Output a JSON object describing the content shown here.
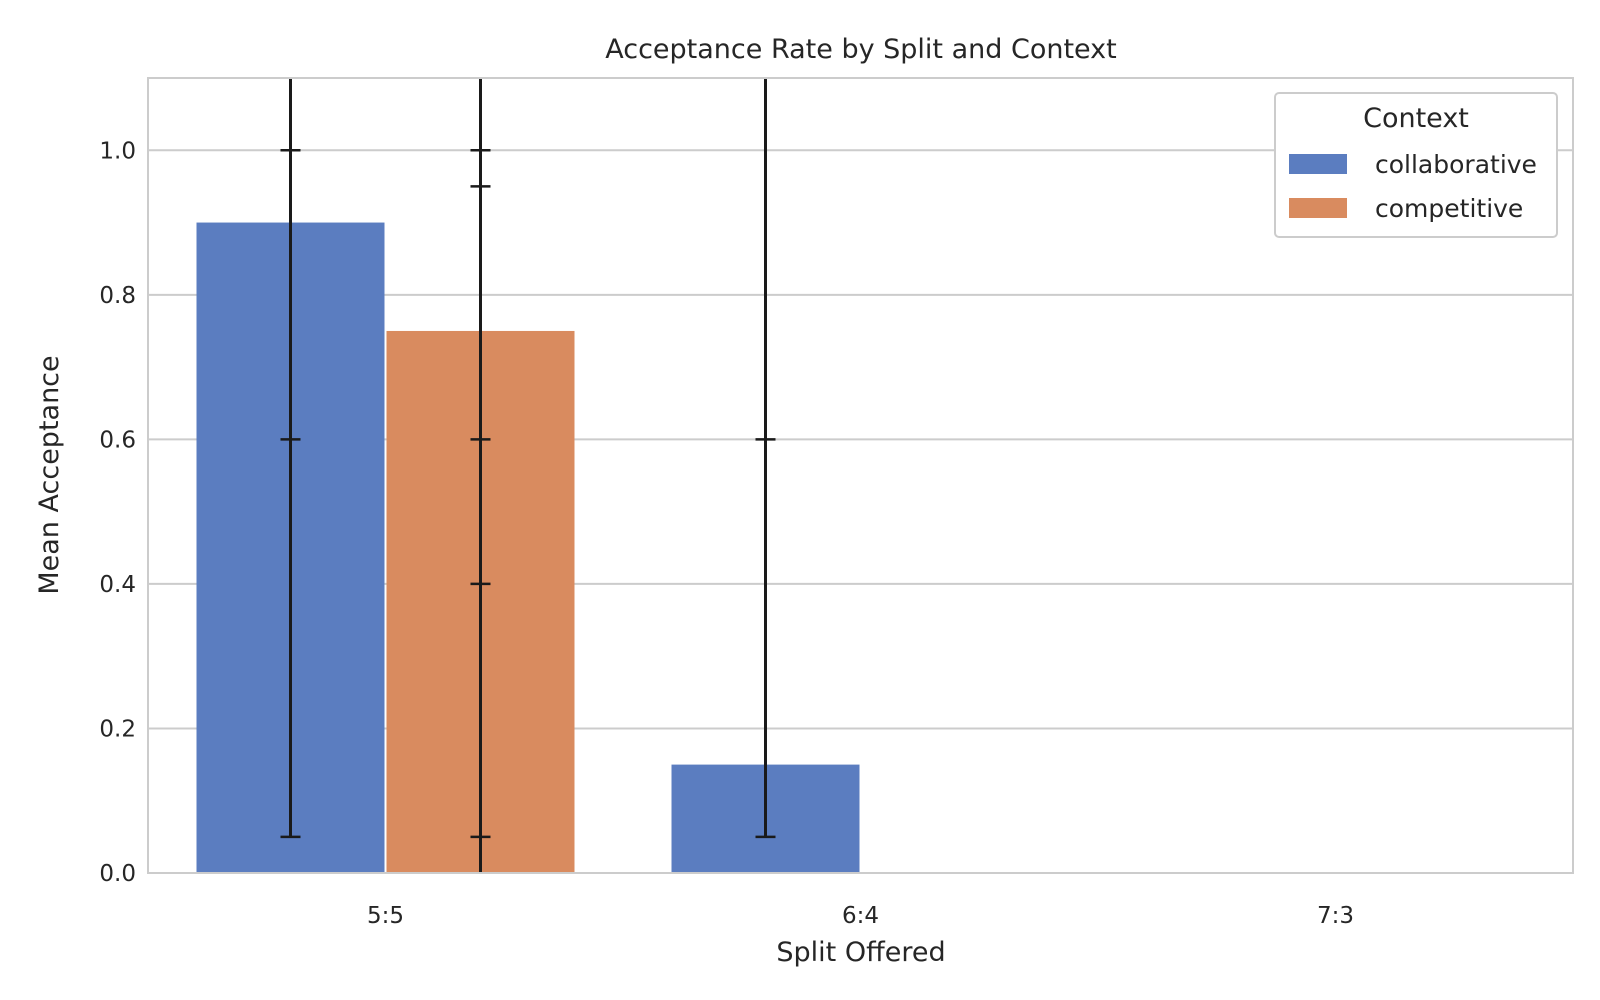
{
  "chart_data": {
    "type": "bar",
    "title": "Acceptance Rate by Split and Context",
    "xlabel": "Split Offered",
    "ylabel": "Mean Acceptance",
    "categories": [
      "5:5",
      "6:4",
      "7:3"
    ],
    "ylim": [
      0,
      1.1
    ],
    "yticks": [
      "0.0",
      "0.2",
      "0.4",
      "0.6",
      "0.8",
      "1.0"
    ],
    "grid": "horizontal",
    "legend": {
      "title": "Context",
      "placement": "top-right",
      "entries": [
        "collaborative",
        "competitive"
      ]
    },
    "series": [
      {
        "name": "collaborative",
        "color": "#5b7dc0",
        "values": [
          0.9,
          0.15,
          0.0
        ],
        "error": [
          [
            0.05,
            1.23
          ],
          [
            0.05,
            1.15
          ],
          null
        ],
        "caps": [
          [
            0.05,
            0.6,
            1.0
          ],
          [
            0.05,
            0.6
          ],
          []
        ]
      },
      {
        "name": "competitive",
        "color": "#d98b5f",
        "values": [
          0.75,
          0.0,
          0.0
        ],
        "error": [
          [
            0.0,
            1.23
          ],
          null,
          null
        ],
        "caps": [
          [
            0.05,
            0.4,
            0.6,
            0.95,
            1.0
          ],
          [],
          []
        ]
      }
    ]
  }
}
